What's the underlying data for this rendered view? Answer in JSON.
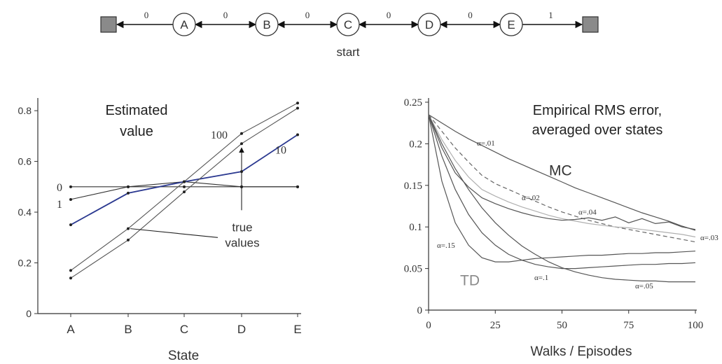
{
  "random_walk": {
    "states": [
      "A",
      "B",
      "C",
      "D",
      "E"
    ],
    "edge_rewards": [
      "0",
      "0",
      "0",
      "0",
      "0",
      "1"
    ],
    "start_label": "start",
    "colors": {
      "terminal": "#8a8a8a",
      "line": "#333333"
    }
  },
  "chart_data": [
    {
      "type": "line",
      "title": "Estimated\nvalue",
      "xlabel": "State",
      "ylabel": "",
      "categories": [
        "A",
        "B",
        "C",
        "D",
        "E"
      ],
      "ylim": [
        0,
        0.85
      ],
      "yticks": [
        0,
        0.2,
        0.4,
        0.6,
        0.8
      ],
      "ytick_labels": [
        "0",
        "0.2",
        "0.4",
        "0.6",
        "0.8"
      ],
      "grid": false,
      "series": [
        {
          "name": "0",
          "values": [
            0.5,
            0.5,
            0.5,
            0.5,
            0.5
          ],
          "color": "#333333"
        },
        {
          "name": "1",
          "values": [
            0.45,
            0.5,
            0.52,
            0.5,
            0.5
          ],
          "color": "#333333"
        },
        {
          "name": "10",
          "values": [
            0.35,
            0.475,
            0.52,
            0.56,
            0.705
          ],
          "color": "#2b3990"
        },
        {
          "name": "100",
          "values": [
            0.17,
            0.335,
            0.52,
            0.71,
            0.83
          ],
          "color": "#555555"
        },
        {
          "name": "",
          "values": [
            0.14,
            0.29,
            0.48,
            0.67,
            0.81
          ],
          "color": "#555555"
        }
      ],
      "annotations": {
        "series_labels": [
          "0",
          "1",
          "10",
          "100"
        ],
        "true_values_label": "true\nvalues"
      }
    },
    {
      "type": "line",
      "title": "Empirical RMS error,\naveraged over states",
      "xlabel": "Walks / Episodes",
      "ylabel": "",
      "xlim": [
        0,
        100
      ],
      "ylim": [
        0,
        0.25
      ],
      "xticks": [
        0,
        25,
        50,
        75,
        100
      ],
      "xtick_labels": [
        "0",
        "25",
        "50",
        "75",
        "100"
      ],
      "yticks": [
        0,
        0.05,
        0.1,
        0.15,
        0.2,
        0.25
      ],
      "ytick_labels": [
        "0",
        "0.05",
        "0.1",
        "0.15",
        "0.2",
        "0.25"
      ],
      "grid": false,
      "x": [
        0,
        5,
        10,
        15,
        20,
        25,
        30,
        35,
        40,
        45,
        50,
        55,
        60,
        65,
        70,
        75,
        80,
        85,
        90,
        95,
        100
      ],
      "series": [
        {
          "name": "α=.01",
          "group": "MC",
          "style": "solid",
          "values": [
            0.235,
            0.225,
            0.215,
            0.206,
            0.198,
            0.19,
            0.182,
            0.175,
            0.168,
            0.161,
            0.154,
            0.147,
            0.141,
            0.135,
            0.129,
            0.123,
            0.117,
            0.112,
            0.107,
            0.101,
            0.096
          ]
        },
        {
          "name": "α=.02",
          "group": "MC",
          "style": "dashed",
          "values": [
            0.235,
            0.215,
            0.195,
            0.178,
            0.162,
            0.152,
            0.145,
            0.138,
            0.131,
            0.124,
            0.118,
            0.113,
            0.108,
            0.104,
            0.1,
            0.097,
            0.094,
            0.091,
            0.088,
            0.085,
            0.082
          ]
        },
        {
          "name": "α=.03",
          "group": "MC",
          "style": "light",
          "values": [
            0.235,
            0.205,
            0.18,
            0.16,
            0.145,
            0.137,
            0.13,
            0.124,
            0.119,
            0.114,
            0.11,
            0.107,
            0.104,
            0.102,
            0.1,
            0.099,
            0.097,
            0.095,
            0.093,
            0.091,
            0.088
          ]
        },
        {
          "name": "α=.04",
          "group": "MC",
          "style": "solid",
          "values": [
            0.235,
            0.195,
            0.165,
            0.148,
            0.135,
            0.128,
            0.122,
            0.117,
            0.113,
            0.11,
            0.108,
            0.109,
            0.111,
            0.108,
            0.112,
            0.105,
            0.11,
            0.104,
            0.106,
            0.1,
            0.097
          ]
        },
        {
          "name": "α=.05",
          "group": "TD",
          "style": "solid",
          "values": [
            0.235,
            0.2,
            0.17,
            0.145,
            0.123,
            0.105,
            0.09,
            0.077,
            0.067,
            0.058,
            0.051,
            0.046,
            0.042,
            0.039,
            0.037,
            0.036,
            0.035,
            0.035,
            0.034,
            0.034,
            0.034
          ]
        },
        {
          "name": "α=.1",
          "group": "TD",
          "style": "solid",
          "values": [
            0.235,
            0.185,
            0.145,
            0.115,
            0.093,
            0.078,
            0.067,
            0.06,
            0.055,
            0.052,
            0.05,
            0.05,
            0.051,
            0.052,
            0.053,
            0.054,
            0.055,
            0.055,
            0.056,
            0.056,
            0.057
          ]
        },
        {
          "name": "α=.15",
          "group": "TD",
          "style": "solid",
          "values": [
            0.235,
            0.155,
            0.105,
            0.078,
            0.063,
            0.058,
            0.058,
            0.06,
            0.062,
            0.063,
            0.064,
            0.065,
            0.066,
            0.066,
            0.067,
            0.068,
            0.068,
            0.069,
            0.069,
            0.07,
            0.071
          ]
        }
      ],
      "annotations": {
        "series_labels": [
          "α=.01",
          "α=.02",
          "α=.03",
          "α=.04",
          "α=.05",
          "α=.1",
          "α=.15"
        ],
        "group_labels": [
          "MC",
          "TD"
        ]
      }
    }
  ]
}
